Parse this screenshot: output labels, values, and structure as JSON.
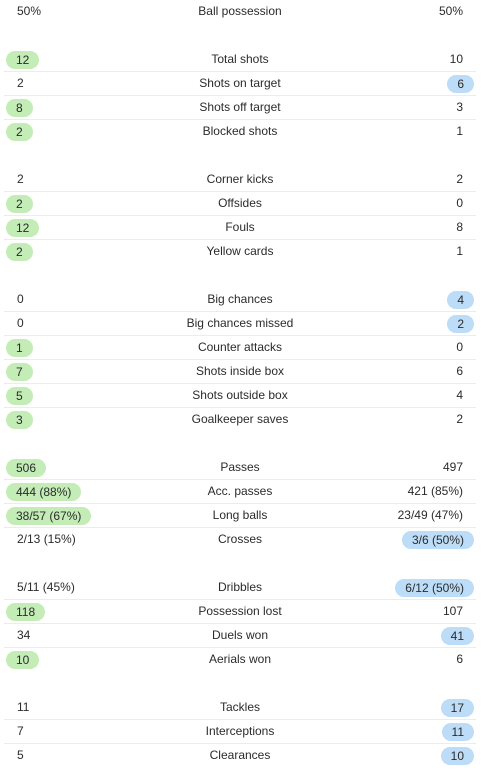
{
  "groups": [
    [
      {
        "label": "Ball possession",
        "home": "50%",
        "away": "50%",
        "hl": ""
      }
    ],
    [
      {
        "label": "Total shots",
        "home": "12",
        "away": "10",
        "hl": "home"
      },
      {
        "label": "Shots on target",
        "home": "2",
        "away": "6",
        "hl": "away"
      },
      {
        "label": "Shots off target",
        "home": "8",
        "away": "3",
        "hl": "home"
      },
      {
        "label": "Blocked shots",
        "home": "2",
        "away": "1",
        "hl": "home"
      }
    ],
    [
      {
        "label": "Corner kicks",
        "home": "2",
        "away": "2",
        "hl": ""
      },
      {
        "label": "Offsides",
        "home": "2",
        "away": "0",
        "hl": "home"
      },
      {
        "label": "Fouls",
        "home": "12",
        "away": "8",
        "hl": "home"
      },
      {
        "label": "Yellow cards",
        "home": "2",
        "away": "1",
        "hl": "home"
      }
    ],
    [
      {
        "label": "Big chances",
        "home": "0",
        "away": "4",
        "hl": "away"
      },
      {
        "label": "Big chances missed",
        "home": "0",
        "away": "2",
        "hl": "away"
      },
      {
        "label": "Counter attacks",
        "home": "1",
        "away": "0",
        "hl": "home"
      },
      {
        "label": "Shots inside box",
        "home": "7",
        "away": "6",
        "hl": "home"
      },
      {
        "label": "Shots outside box",
        "home": "5",
        "away": "4",
        "hl": "home"
      },
      {
        "label": "Goalkeeper saves",
        "home": "3",
        "away": "2",
        "hl": "home"
      }
    ],
    [
      {
        "label": "Passes",
        "home": "506",
        "away": "497",
        "hl": "home"
      },
      {
        "label": "Acc. passes",
        "home": "444 (88%)",
        "away": "421 (85%)",
        "hl": "home"
      },
      {
        "label": "Long balls",
        "home": "38/57 (67%)",
        "away": "23/49 (47%)",
        "hl": "home"
      },
      {
        "label": "Crosses",
        "home": "2/13 (15%)",
        "away": "3/6 (50%)",
        "hl": "away"
      }
    ],
    [
      {
        "label": "Dribbles",
        "home": "5/11 (45%)",
        "away": "6/12 (50%)",
        "hl": "away"
      },
      {
        "label": "Possession lost",
        "home": "118",
        "away": "107",
        "hl": "home"
      },
      {
        "label": "Duels won",
        "home": "34",
        "away": "41",
        "hl": "away"
      },
      {
        "label": "Aerials won",
        "home": "10",
        "away": "6",
        "hl": "home"
      }
    ],
    [
      {
        "label": "Tackles",
        "home": "11",
        "away": "17",
        "hl": "away"
      },
      {
        "label": "Interceptions",
        "home": "7",
        "away": "11",
        "hl": "away"
      },
      {
        "label": "Clearances",
        "home": "5",
        "away": "10",
        "hl": "away"
      }
    ]
  ]
}
